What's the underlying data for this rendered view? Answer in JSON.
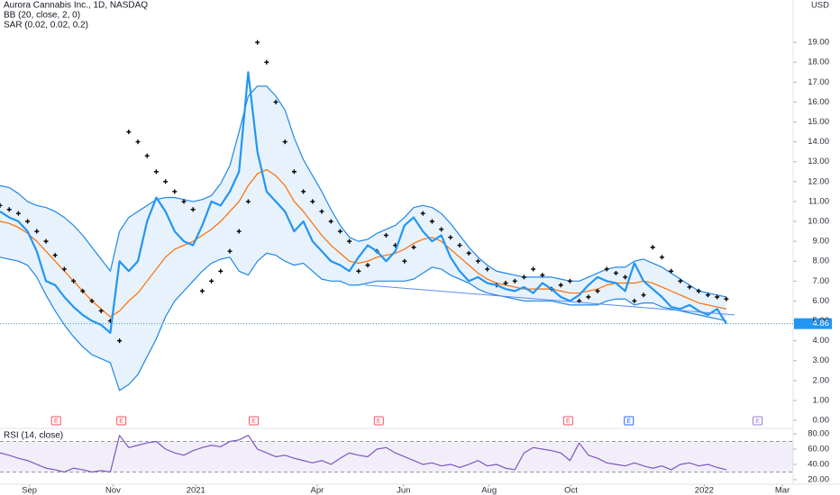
{
  "chart_data": [
    {
      "type": "line",
      "title": "Aurora Cannabis Inc., 1D, NASDAQ",
      "subtitle": "BB (20, close, 2, 0)",
      "annotations": [
        "SAR (0.02, 0.02, 0.2)"
      ],
      "currency": "USD",
      "last_value_label": "4.86",
      "xlim": [
        0,
        86.27
      ],
      "ylim": [
        -0.36,
        21.13
      ],
      "yticks": [
        {
          "value": 0,
          "label": "0.00"
        },
        {
          "value": 1,
          "label": "1.00"
        },
        {
          "value": 2,
          "label": "2.00"
        },
        {
          "value": 3,
          "label": "3.00"
        },
        {
          "value": 4,
          "label": "4.00"
        },
        {
          "value": 5,
          "label": "5.00"
        },
        {
          "value": 6,
          "label": "6.00"
        },
        {
          "value": 7,
          "label": "7.00"
        },
        {
          "value": 8,
          "label": "8.00"
        },
        {
          "value": 9,
          "label": "9.00"
        },
        {
          "value": 10,
          "label": "10.00"
        },
        {
          "value": 11,
          "label": "11.00"
        },
        {
          "value": 12,
          "label": "12.00"
        },
        {
          "value": 13,
          "label": "13.00"
        },
        {
          "value": 14,
          "label": "14.00"
        },
        {
          "value": 15,
          "label": "15.00"
        },
        {
          "value": 16,
          "label": "16.00"
        },
        {
          "value": 17,
          "label": "17.00"
        },
        {
          "value": 18,
          "label": "18.00"
        },
        {
          "value": 19,
          "label": "19.00"
        }
      ],
      "series": [
        {
          "color": "#1e88e5",
          "style": "line",
          "fill_to": 2,
          "fill": "#e8f2fd",
          "values": [
            11.8,
            11.7,
            11.4,
            11.0,
            10.8,
            10.7,
            10.5,
            10.2,
            9.8,
            9.3,
            8.7,
            8.1,
            7.5,
            9.5,
            10.2,
            10.5,
            10.8,
            11.1,
            11.2,
            11.2,
            11.1,
            11.0,
            11.1,
            11.3,
            11.9,
            12.8,
            14.5,
            16.3,
            16.8,
            16.8,
            16.3,
            15.6,
            14.2,
            13.1,
            12.3,
            11.5,
            10.6,
            9.8,
            9.2,
            9.0,
            9.1,
            9.4,
            9.6,
            9.8,
            10.2,
            10.7,
            10.8,
            10.7,
            10.4,
            9.9,
            9.3,
            8.7,
            8.2,
            7.8,
            7.5,
            7.4,
            7.3,
            7.2,
            7.2,
            7.2,
            7.2,
            7.1,
            7.0,
            7.0,
            7.2,
            7.4,
            7.6,
            7.7,
            7.7,
            8.0,
            8.1,
            7.9,
            7.7,
            7.4,
            7.1,
            6.8,
            6.5,
            6.4,
            6.3,
            6.2
          ]
        },
        {
          "color": "#ff6d00",
          "style": "line",
          "values": [
            10.0,
            9.9,
            9.7,
            9.4,
            9.0,
            8.5,
            8.0,
            7.5,
            7.0,
            6.5,
            6.0,
            5.6,
            5.2,
            5.5,
            6.0,
            6.4,
            7.0,
            7.6,
            8.2,
            8.6,
            8.8,
            9.0,
            9.3,
            9.6,
            10.0,
            10.5,
            11.0,
            11.8,
            12.4,
            12.6,
            12.3,
            11.8,
            11.0,
            10.5,
            9.9,
            9.3,
            8.8,
            8.4,
            8.0,
            7.9,
            8.0,
            8.2,
            8.3,
            8.4,
            8.6,
            8.9,
            9.1,
            9.2,
            9.0,
            8.6,
            8.2,
            7.8,
            7.4,
            7.1,
            6.9,
            6.8,
            6.7,
            6.6,
            6.6,
            6.6,
            6.6,
            6.5,
            6.4,
            6.4,
            6.5,
            6.6,
            6.8,
            6.9,
            6.9,
            6.9,
            7.0,
            6.9,
            6.7,
            6.5,
            6.3,
            6.1,
            5.9,
            5.8,
            5.7,
            5.6
          ]
        },
        {
          "color": "#1e88e5",
          "style": "line",
          "values": [
            8.2,
            8.1,
            8.0,
            7.8,
            7.2,
            6.3,
            5.5,
            4.8,
            4.2,
            3.7,
            3.3,
            3.1,
            2.9,
            1.5,
            1.8,
            2.3,
            3.2,
            4.1,
            5.2,
            6.0,
            6.5,
            7.0,
            7.5,
            7.9,
            8.1,
            8.2,
            7.5,
            7.3,
            8.0,
            8.4,
            8.3,
            8.0,
            7.8,
            7.9,
            7.5,
            7.1,
            7.0,
            7.0,
            6.8,
            6.8,
            6.9,
            7.0,
            7.0,
            7.0,
            7.0,
            7.1,
            7.4,
            7.7,
            7.6,
            7.3,
            7.1,
            6.9,
            6.6,
            6.4,
            6.3,
            6.2,
            6.1,
            6.0,
            6.0,
            6.0,
            6.0,
            5.9,
            5.8,
            5.8,
            5.8,
            5.8,
            6.0,
            6.1,
            6.1,
            5.8,
            5.9,
            5.9,
            5.7,
            5.6,
            5.5,
            5.4,
            5.3,
            5.2,
            5.1,
            5.0
          ]
        },
        {
          "color": "#000000",
          "style": "dots",
          "values": [
            10.8,
            10.6,
            10.4,
            10.0,
            9.5,
            9.0,
            8.3,
            7.6,
            7.0,
            6.5,
            6.0,
            5.5,
            5.0,
            4.0,
            14.5,
            14.0,
            13.3,
            12.5,
            12.0,
            11.5,
            11.0,
            10.6,
            6.5,
            7.0,
            7.5,
            8.5,
            9.5,
            11.0,
            19.0,
            18.0,
            16.0,
            14.0,
            12.5,
            11.5,
            11.0,
            10.5,
            10.0,
            9.5,
            9.0,
            7.5,
            7.8,
            8.5,
            9.3,
            8.8,
            8.0,
            8.7,
            10.4,
            10.0,
            9.6,
            9.2,
            8.8,
            8.4,
            8.0,
            7.6,
            6.8,
            6.9,
            7.0,
            7.2,
            7.6,
            7.3,
            6.6,
            6.8,
            7.0,
            6.0,
            6.2,
            6.5,
            7.6,
            7.4,
            7.2,
            6.0,
            6.3,
            8.7,
            8.2,
            7.5,
            7.0,
            6.7,
            6.5,
            6.3,
            6.2,
            6.1
          ]
        },
        {
          "color": "#2196f3",
          "style": "line",
          "width": 2.2,
          "last": true,
          "values": [
            10.5,
            10.2,
            10.0,
            9.5,
            8.5,
            7.0,
            6.8,
            6.2,
            5.7,
            5.3,
            5.0,
            4.8,
            4.4,
            8.0,
            7.5,
            8.0,
            10.0,
            11.2,
            10.5,
            9.5,
            9.0,
            8.8,
            9.8,
            11.0,
            10.8,
            11.5,
            12.5,
            17.5,
            13.5,
            11.5,
            11.0,
            10.5,
            9.5,
            10.0,
            9.0,
            8.5,
            8.0,
            7.8,
            7.5,
            8.2,
            8.8,
            8.5,
            8.0,
            8.5,
            9.8,
            10.2,
            9.5,
            9.0,
            9.3,
            8.2,
            7.5,
            7.0,
            7.2,
            6.9,
            6.8,
            6.6,
            6.5,
            6.7,
            6.4,
            6.9,
            6.6,
            6.2,
            6.0,
            6.3,
            6.8,
            7.2,
            7.0,
            6.9,
            6.5,
            7.9,
            7.0,
            6.6,
            6.2,
            5.7,
            5.6,
            5.8,
            5.5,
            5.3,
            5.6,
            4.86
          ]
        }
      ],
      "trendline": {
        "color": "#5b8def",
        "x": [
          39.7,
          79.9
        ],
        "values": [
          6.8,
          5.3
        ]
      },
      "events": [
        {
          "x": 6.1,
          "label": "E"
        },
        {
          "x": 13.2,
          "label": "E"
        },
        {
          "x": 27.6,
          "label": "E"
        },
        {
          "x": 41.2,
          "label": "E"
        },
        {
          "x": 61.8,
          "label": "E"
        },
        {
          "x": 68.4,
          "label": "E"
        },
        {
          "x": 82.4,
          "label": "E"
        }
      ]
    },
    {
      "type": "line",
      "title": "RSI (14, close)",
      "xlim": [
        0,
        86.27
      ],
      "ylim": [
        14.1,
        84.7
      ],
      "yticks": [
        {
          "value": 20,
          "label": "20.00"
        },
        {
          "value": 40,
          "label": "40.00"
        },
        {
          "value": 60,
          "label": "60.00"
        },
        {
          "value": 80,
          "label": "80.00"
        }
      ],
      "band": [
        30,
        70
      ],
      "xticks": [
        {
          "value": 3.2,
          "label": "Sep"
        },
        {
          "value": 12.3,
          "label": "Nov"
        },
        {
          "value": 21.3,
          "label": "2021"
        },
        {
          "value": 34.5,
          "label": "Apr"
        },
        {
          "value": 43.9,
          "label": "Jun"
        },
        {
          "value": 53.2,
          "label": "Aug"
        },
        {
          "value": 62.1,
          "label": "Oct"
        },
        {
          "value": 76.6,
          "label": "2022"
        },
        {
          "value": 85.1,
          "label": "Mar"
        }
      ],
      "series": [
        {
          "color": "#7e57c2",
          "style": "line",
          "values": [
            55,
            52,
            48,
            45,
            40,
            35,
            33,
            30,
            35,
            33,
            30,
            32,
            30,
            78,
            62,
            65,
            68,
            70,
            60,
            55,
            52,
            58,
            62,
            65,
            63,
            70,
            72,
            78,
            60,
            55,
            50,
            52,
            48,
            45,
            42,
            45,
            40,
            48,
            55,
            52,
            50,
            60,
            62,
            55,
            50,
            45,
            40,
            42,
            38,
            40,
            36,
            40,
            45,
            38,
            40,
            35,
            33,
            55,
            62,
            60,
            58,
            55,
            45,
            68,
            52,
            48,
            42,
            40,
            38,
            42,
            38,
            35,
            38,
            33,
            40,
            42,
            38,
            40,
            36,
            33
          ]
        }
      ]
    }
  ]
}
